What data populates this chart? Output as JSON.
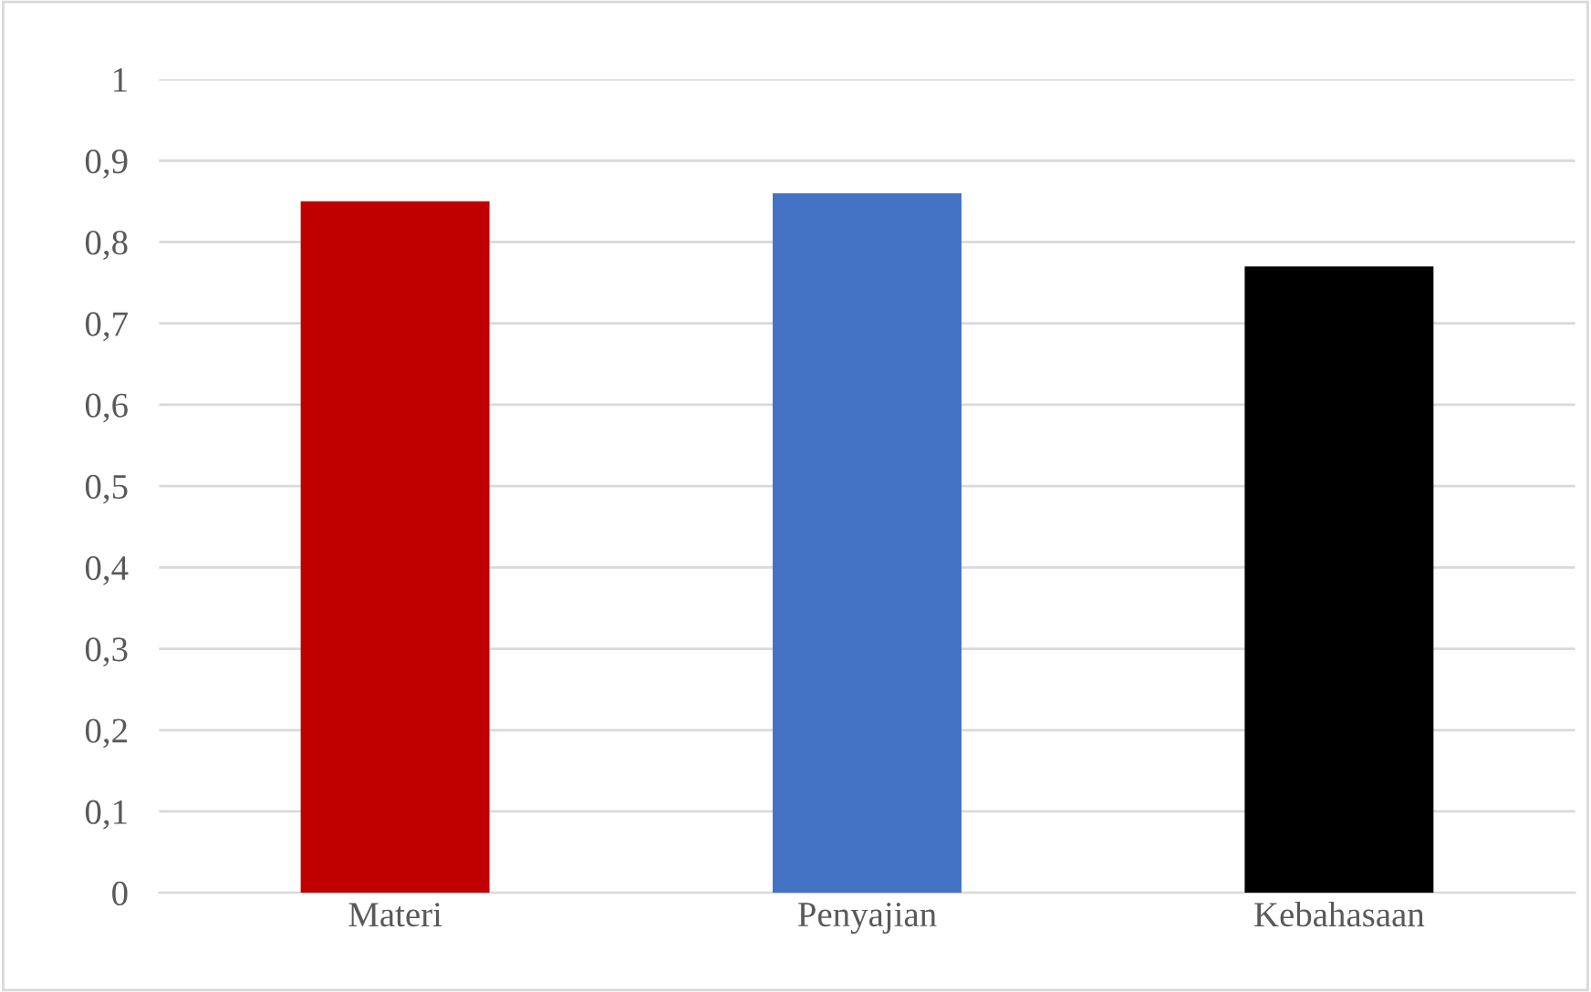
{
  "chart_data": {
    "type": "bar",
    "categories": [
      "Materi",
      "Penyajian",
      "Kebahasaan"
    ],
    "values": [
      0.85,
      0.86,
      0.77
    ],
    "colors": [
      "#c00000",
      "#4472c4",
      "#000000"
    ],
    "ylim": [
      0,
      1
    ],
    "yticks": [
      0,
      {
        "value": 0.1,
        "label": "0,1"
      },
      {
        "value": 0.2,
        "label": "0,2"
      },
      {
        "value": 0.3,
        "label": "0,3"
      },
      {
        "value": 0.4,
        "label": "0,4"
      },
      {
        "value": 0.5,
        "label": "0,5"
      },
      {
        "value": 0.6,
        "label": "0,6"
      },
      {
        "value": 0.7,
        "label": "0,7"
      },
      {
        "value": 0.8,
        "label": "0,8"
      },
      {
        "value": 0.9,
        "label": "0,9"
      },
      1
    ],
    "grid": "y",
    "legend": false
  }
}
